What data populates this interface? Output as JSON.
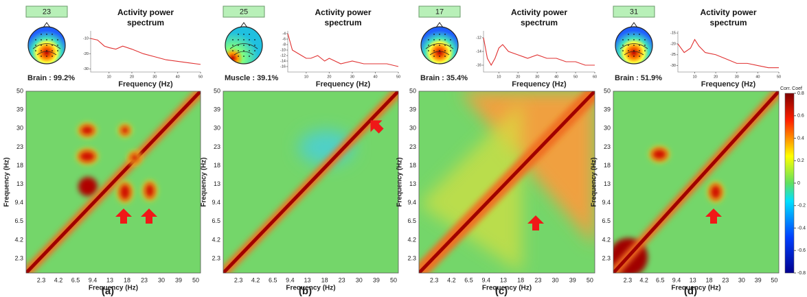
{
  "panels": [
    {
      "label": "(a)",
      "component": 23,
      "classification": "Brain : 99.2%",
      "spectrum": {
        "type": "line",
        "title": "Activity power spectrum",
        "x_label": "Frequency (Hz)",
        "color": "#e03030",
        "x": [
          2,
          5,
          8,
          10,
          13,
          16,
          20,
          25,
          30,
          35,
          40,
          45,
          50
        ],
        "values": [
          -10,
          -11,
          -15,
          -16,
          -17,
          -15,
          -17,
          -20,
          -22,
          -24,
          -25,
          -26,
          -27
        ],
        "xlim": [
          2,
          50
        ],
        "ylim": [
          -5,
          -32
        ],
        "xticks": [
          10,
          20,
          30,
          40,
          50
        ],
        "yticks": [
          -10,
          -20,
          -30
        ]
      },
      "heatmap": {
        "x_label": "Frequency (Hz)",
        "y_label": "Frequency (Hz)",
        "ticks": [
          2.3,
          4.2,
          6.5,
          9.4,
          13,
          18,
          23,
          30,
          39,
          50
        ]
      }
    },
    {
      "label": "(b)",
      "component": 25,
      "classification": "Muscle : 39.1%",
      "spectrum": {
        "type": "line",
        "title": "Activity power spectrum",
        "x_label": "Frequency (Hz)",
        "color": "#e03030",
        "x": [
          2,
          4,
          6,
          8,
          10,
          12,
          15,
          18,
          20,
          25,
          30,
          35,
          40,
          45,
          50
        ],
        "values": [
          -4,
          -10,
          -11,
          -12,
          -13,
          -13,
          -12,
          -14,
          -13,
          -15,
          -14,
          -15,
          -15,
          -15,
          -16
        ],
        "xlim": [
          2,
          50
        ],
        "ylim": [
          -3,
          -18
        ],
        "xticks": [
          10,
          20,
          30,
          40,
          50
        ],
        "yticks": [
          -4,
          -6,
          -8,
          -10,
          -12,
          -14,
          -16
        ]
      },
      "heatmap": {
        "x_label": "Frequency (Hz)",
        "y_label": "Frequency (Hz)",
        "ticks": [
          2.3,
          4.2,
          6.5,
          9.4,
          13,
          18,
          23,
          30,
          39,
          50
        ]
      }
    },
    {
      "label": "(c)",
      "component": 17,
      "classification": "Brain : 35.4%",
      "spectrum": {
        "type": "line",
        "title": "Activity power spectrum",
        "x_label": "Frequency (Hz)",
        "color": "#e03030",
        "x": [
          2,
          4,
          6,
          8,
          10,
          12,
          15,
          20,
          25,
          30,
          35,
          40,
          45,
          50,
          55,
          60
        ],
        "values": [
          -12,
          -15,
          -16,
          -15,
          -13.5,
          -13,
          -14,
          -14.5,
          -15,
          -14.5,
          -15,
          -15,
          -15.5,
          -15.5,
          -16,
          -16
        ],
        "xlim": [
          2,
          60
        ],
        "ylim": [
          -11,
          -17
        ],
        "xticks": [
          10,
          20,
          30,
          40,
          50,
          60
        ],
        "yticks": [
          -12,
          -14,
          -16
        ]
      },
      "heatmap": {
        "x_label": "Frequency (Hz)",
        "y_label": "Frequency (Hz)",
        "ticks": [
          2.3,
          4.2,
          6.5,
          9.4,
          13,
          18,
          23,
          30,
          39,
          50
        ]
      }
    },
    {
      "label": "(d)",
      "component": 31,
      "classification": "Brain : 51.9%",
      "spectrum": {
        "type": "line",
        "title": "Activity power spectrum",
        "x_label": "Frequency (Hz)",
        "color": "#e03030",
        "x": [
          2,
          5,
          8,
          10,
          12,
          15,
          20,
          25,
          30,
          35,
          40,
          45,
          50
        ],
        "values": [
          -20,
          -24,
          -22,
          -18,
          -21,
          -24,
          -25,
          -27,
          -29,
          -29,
          -30,
          -31,
          -31
        ],
        "xlim": [
          2,
          50
        ],
        "ylim": [
          -14,
          -33
        ],
        "xticks": [
          10,
          20,
          30,
          40,
          50
        ],
        "yticks": [
          -15,
          -20,
          -25,
          -30
        ]
      },
      "heatmap": {
        "x_label": "Frequency (Hz)",
        "y_label": "Frequency (Hz)",
        "ticks": [
          2.3,
          4.2,
          6.5,
          9.4,
          13,
          18,
          23,
          30,
          39,
          50
        ]
      }
    }
  ],
  "colorbar": {
    "title": "Corr. Coef",
    "lim": [
      -0.8,
      0.8
    ],
    "ticks": [
      0.8,
      0.6,
      0.4,
      0.2,
      0,
      -0.2,
      -0.4,
      -0.6,
      -0.8
    ]
  }
}
